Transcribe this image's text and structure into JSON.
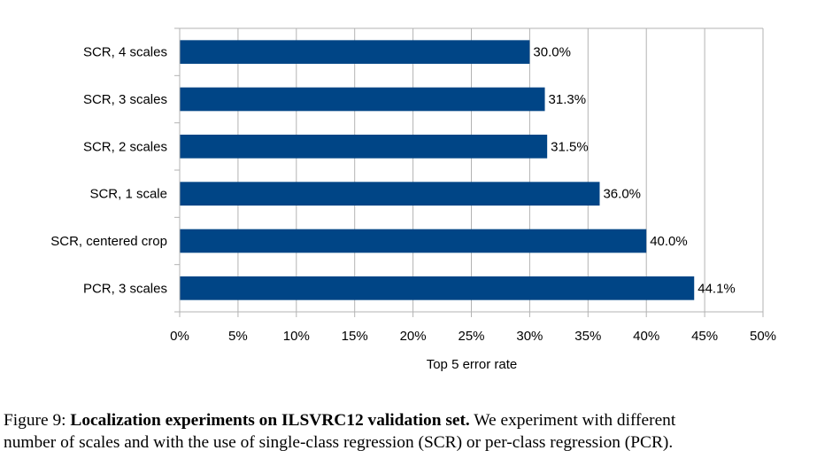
{
  "chart_data": {
    "type": "bar",
    "orientation": "horizontal",
    "categories": [
      "SCR, 4 scales",
      "SCR, 3 scales",
      "SCR, 2 scales",
      "SCR, 1 scale",
      "SCR, centered crop",
      "PCR, 3 scales"
    ],
    "values": [
      30.0,
      31.3,
      31.5,
      36.0,
      40.0,
      44.1
    ],
    "value_labels": [
      "30.0%",
      "31.3%",
      "31.5%",
      "36.0%",
      "40.0%",
      "44.1%"
    ],
    "xlabel": "Top 5 error rate",
    "ylabel": "",
    "xlim": [
      0,
      50
    ],
    "xticks": [
      0,
      5,
      10,
      15,
      20,
      25,
      30,
      35,
      40,
      45,
      50
    ],
    "xtick_labels": [
      "0%",
      "5%",
      "10%",
      "15%",
      "20%",
      "25%",
      "30%",
      "35%",
      "40%",
      "45%",
      "50%"
    ],
    "grid": true,
    "bar_color": "#004586"
  },
  "caption": {
    "prefix": "Figure 9: ",
    "bold": "Localization experiments on ILSVRC12 validation set.",
    "line1_rest": " We experiment with different",
    "line2": "number of scales and with the use of single-class regression (SCR) or per-class regression (PCR)."
  }
}
